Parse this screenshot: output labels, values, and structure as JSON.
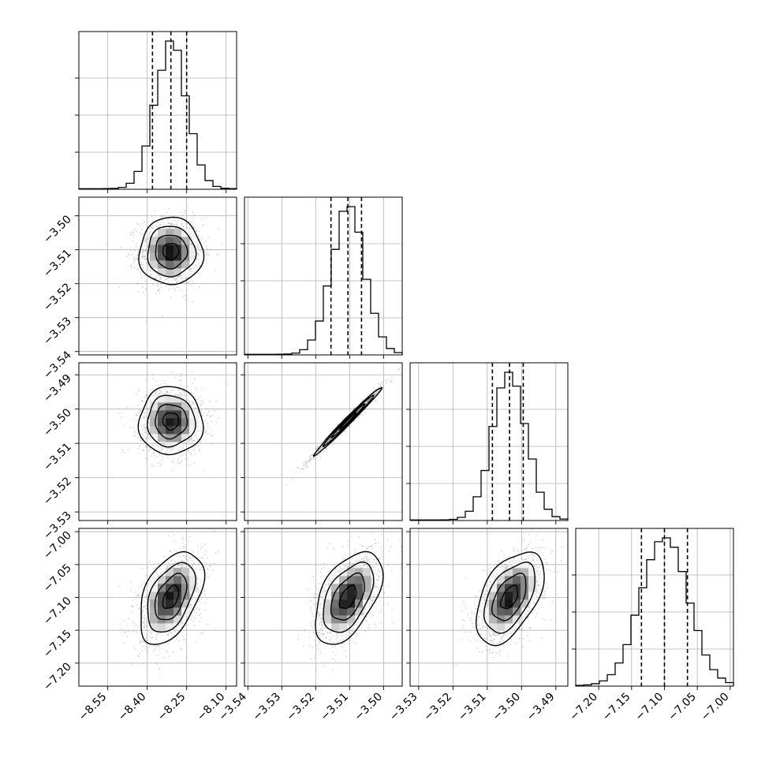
{
  "chart_data": {
    "type": "corner",
    "n_params": 4,
    "params": [
      {
        "name": "",
        "mean": -8.31,
        "sd": 0.055,
        "q16": -8.38,
        "q50": -8.31,
        "q84": -8.25,
        "range": [
          -8.66,
          -8.06
        ],
        "ticks": [
          -8.55,
          -8.4,
          -8.25,
          -8.1
        ],
        "tick_labels": [
          "−8.55",
          "−8.40",
          "−8.25",
          "−8.10"
        ]
      },
      {
        "name": "",
        "mean": -3.5105,
        "sd": 0.0045,
        "q16": -3.5155,
        "q50": -3.5105,
        "q84": -3.5065,
        "range": [
          -3.541,
          -3.4945
        ],
        "ticks": [
          -3.54,
          -3.53,
          -3.52,
          -3.51,
          -3.5
        ],
        "tick_labels": [
          "−3.54",
          "−3.53",
          "−3.52",
          "−3.51",
          "−3.50"
        ]
      },
      {
        "name": "",
        "mean": -3.5035,
        "sd": 0.0045,
        "q16": -3.5085,
        "q50": -3.5035,
        "q84": -3.4995,
        "range": [
          -3.5325,
          -3.4865
        ],
        "ticks": [
          -3.53,
          -3.52,
          -3.51,
          -3.5,
          -3.49
        ],
        "tick_labels": [
          "−3.53",
          "−3.52",
          "−3.51",
          "−3.50",
          "−3.49"
        ]
      },
      {
        "name": "",
        "mean": -7.1,
        "sd": 0.032,
        "q16": -7.135,
        "q50": -7.1,
        "q84": -7.065,
        "range": [
          -7.235,
          -6.995
        ],
        "ticks": [
          -7.2,
          -7.15,
          -7.1,
          -7.05,
          -7.0
        ],
        "tick_labels": [
          "−7.20",
          "−7.15",
          "−7.10",
          "−7.05",
          "−7.00"
        ]
      }
    ],
    "correlations": [
      {
        "i": 1,
        "j": 0,
        "rho": 0.0
      },
      {
        "i": 2,
        "j": 0,
        "rho": 0.0
      },
      {
        "i": 2,
        "j": 1,
        "rho": 0.99
      },
      {
        "i": 3,
        "j": 0,
        "rho": 0.45
      },
      {
        "i": 3,
        "j": 1,
        "rho": 0.5
      },
      {
        "i": 3,
        "j": 2,
        "rho": 0.5
      }
    ],
    "histogram_bins": 20,
    "contour_levels_sigma": [
      0.5,
      1.0,
      1.5,
      2.0
    ],
    "y_axis_labels_shown_for_rows": [
      1,
      2,
      3
    ],
    "x_axis_labels_shown_for_row": 3,
    "grid": true,
    "colors": {
      "line": "#000000",
      "grid": "#b0b0b0",
      "points": "#8c8c8c",
      "background": "#ffffff"
    }
  }
}
